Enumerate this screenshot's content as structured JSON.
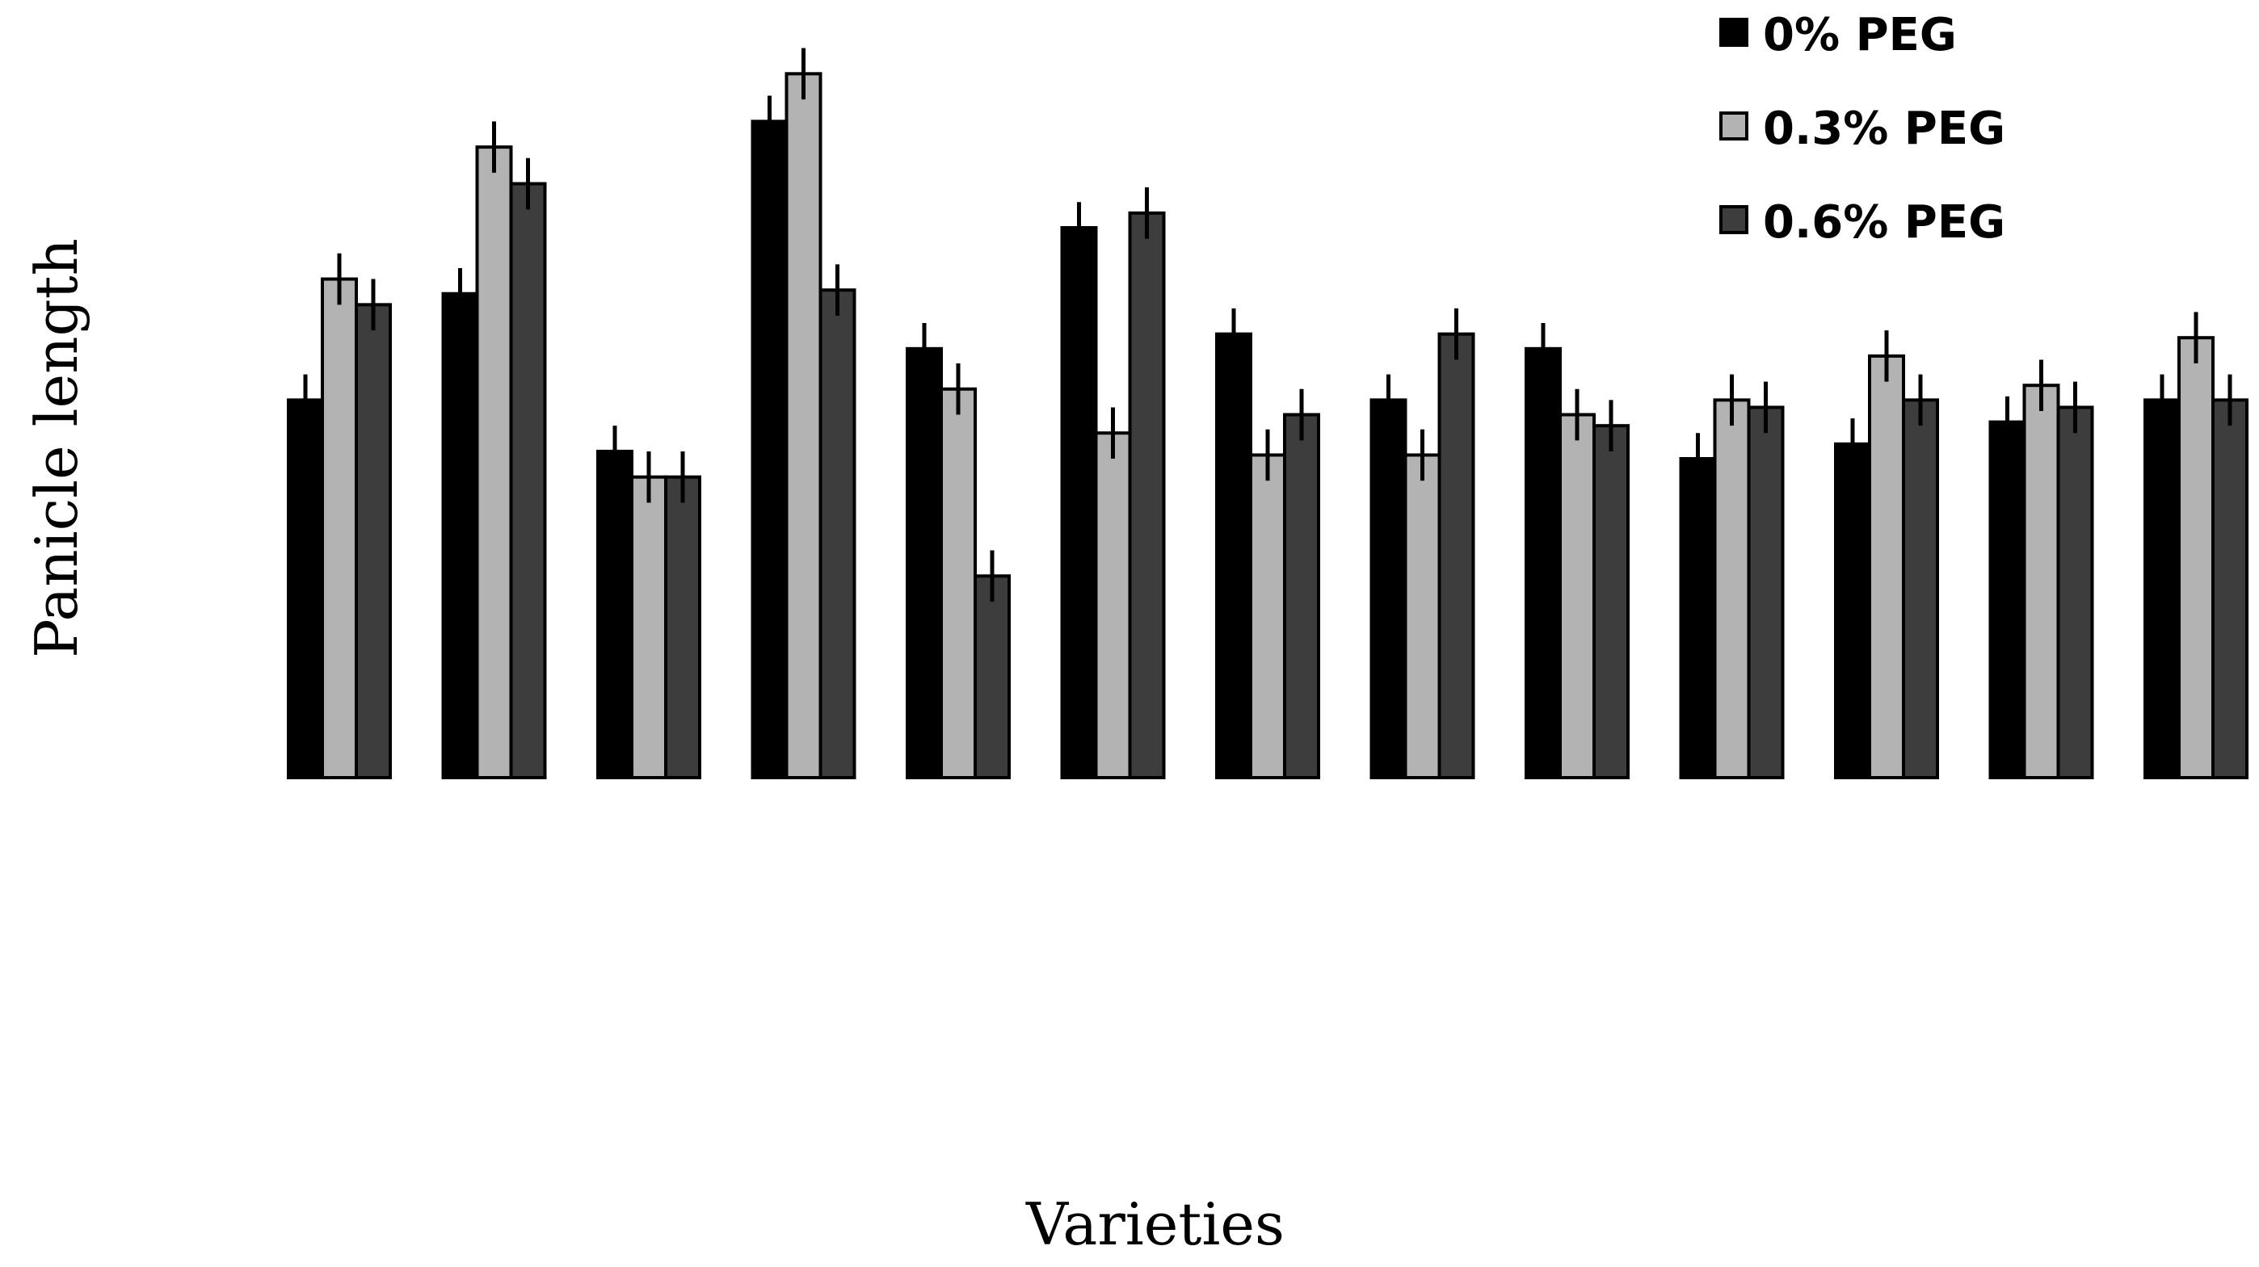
{
  "chart_data": {
    "type": "bar",
    "xlabel": "Varieties",
    "ylabel": "Panicle length",
    "ylim": [
      0,
      100
    ],
    "grid": false,
    "legend_position": "top-right",
    "categories": [
      "",
      "",
      "",
      "",
      "",
      "",
      "",
      "",
      "",
      "",
      "",
      "",
      ""
    ],
    "series": [
      {
        "name": "0% PEG",
        "color": "#000000",
        "values": [
          51.5,
          66,
          44.5,
          89.5,
          58.5,
          75,
          60.5,
          51.5,
          58.5,
          43.5,
          45.5,
          48.5,
          51.5
        ],
        "errors": [
          3.5,
          3.5,
          3.5,
          3.5,
          3.5,
          3.5,
          3.5,
          3.5,
          3.5,
          3.5,
          3.5,
          3.5,
          3.5
        ]
      },
      {
        "name": "0.3% PEG",
        "color": "#b3b3b3",
        "values": [
          68,
          86,
          41,
          96,
          53,
          47,
          44,
          44,
          49.5,
          51.5,
          57.5,
          53.5,
          60
        ],
        "errors": [
          3.5,
          3.5,
          3.5,
          3.5,
          3.5,
          3.5,
          3.5,
          3.5,
          3.5,
          3.5,
          3.5,
          3.5,
          3.5
        ]
      },
      {
        "name": "0.6% PEG",
        "color": "#3d3d3d",
        "values": [
          64.5,
          81,
          41,
          66.5,
          27.5,
          77,
          49.5,
          60.5,
          48,
          50.5,
          51.5,
          50.5,
          51.5
        ],
        "errors": [
          3.5,
          3.5,
          3.5,
          3.5,
          3.5,
          3.5,
          3.5,
          3.5,
          3.5,
          3.5,
          3.5,
          3.5,
          3.5
        ]
      }
    ]
  }
}
